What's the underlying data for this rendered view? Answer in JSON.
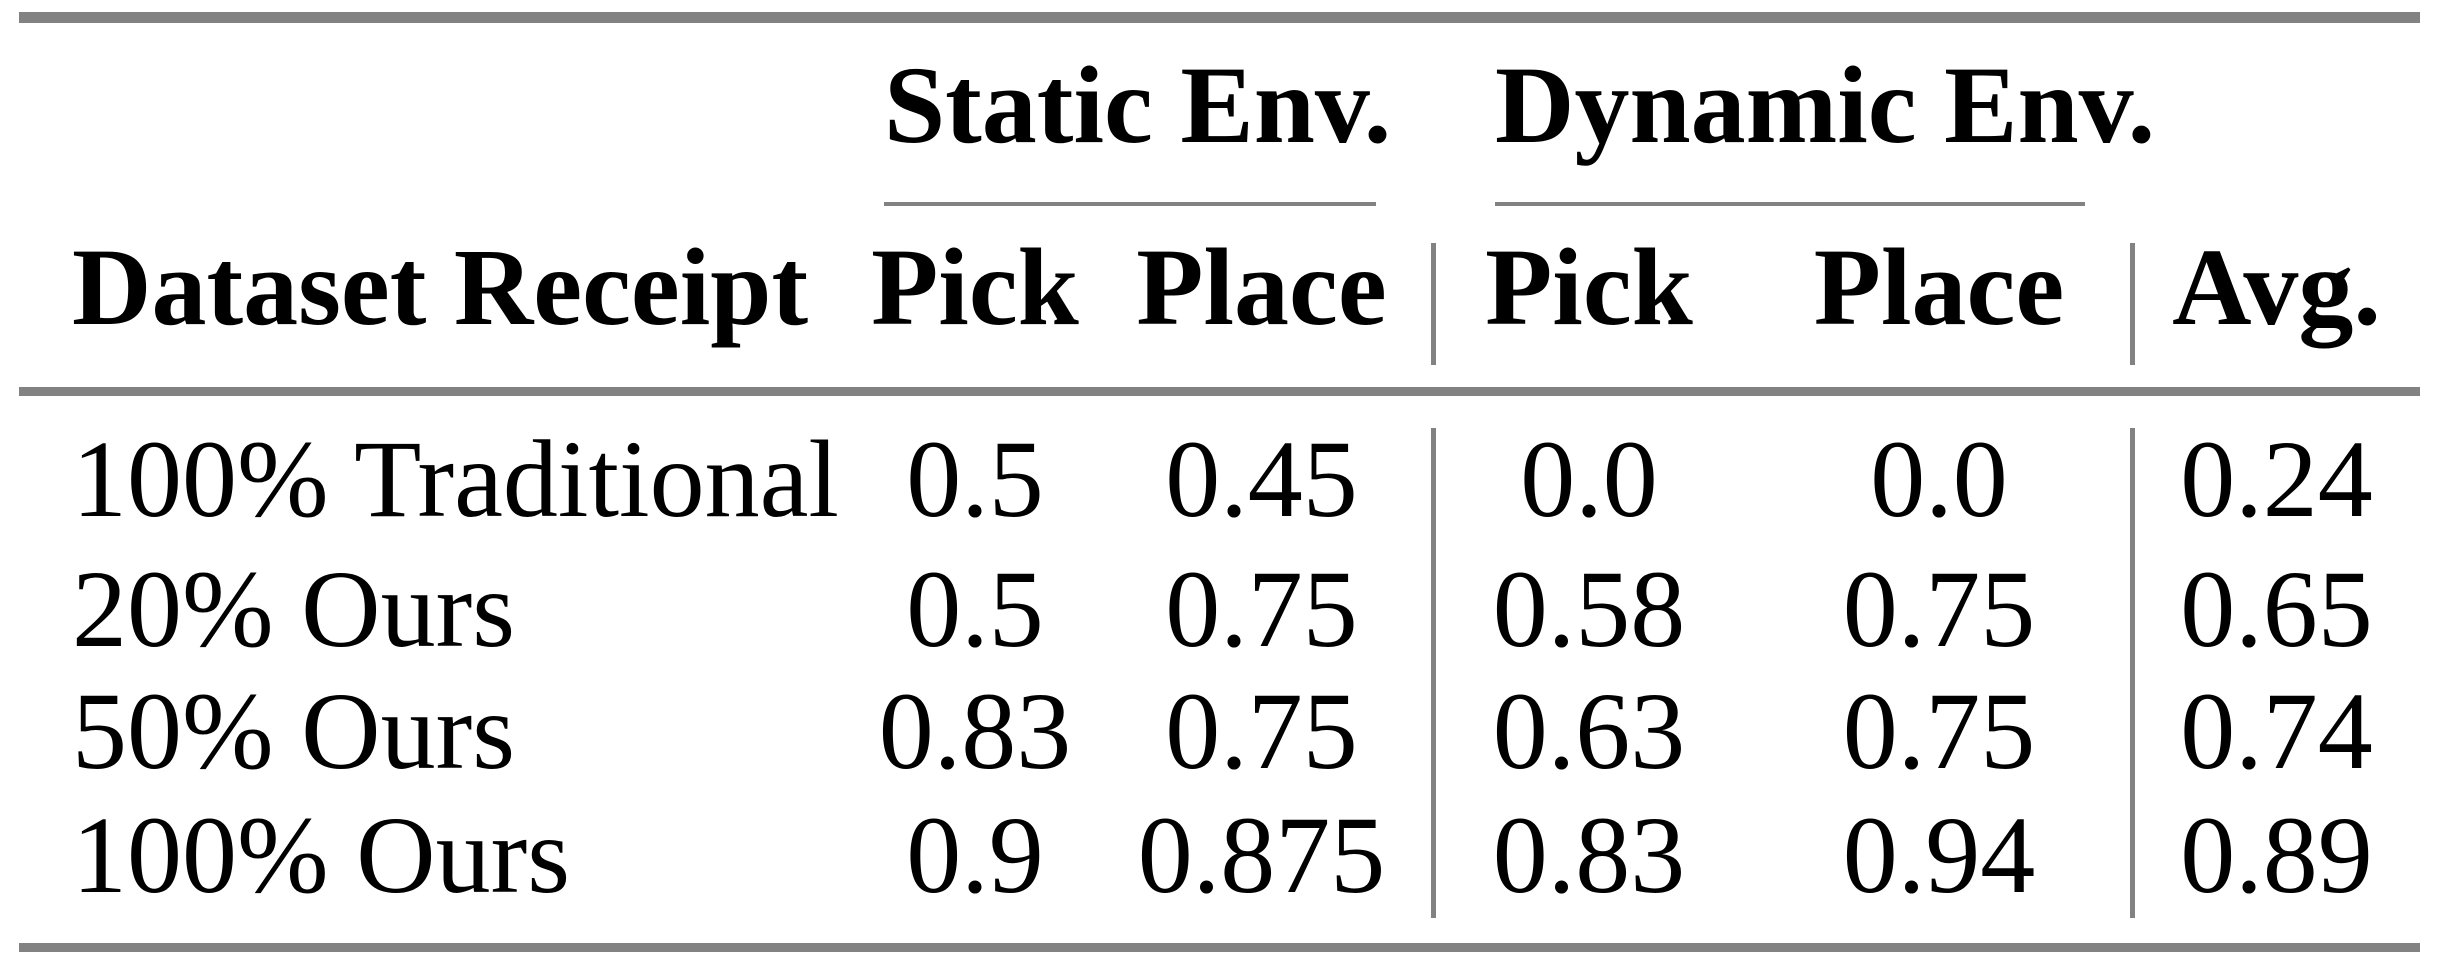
{
  "table": {
    "group_headers": [
      {
        "label": "Static Env."
      },
      {
        "label": "Dynamic Env."
      }
    ],
    "column_headers": [
      "Dataset Receipt",
      "Pick",
      "Place",
      "Pick",
      "Place",
      "Avg."
    ],
    "rows": [
      {
        "cells": [
          "100% Traditional",
          "0.5",
          "0.45",
          "0.0",
          "0.0",
          "0.24"
        ]
      },
      {
        "cells": [
          "20% Ours",
          "0.5",
          "0.75",
          "0.58",
          "0.75",
          "0.65"
        ]
      },
      {
        "cells": [
          "50% Ours",
          "0.83",
          "0.75",
          "0.63",
          "0.75",
          "0.74"
        ]
      },
      {
        "cells": [
          "100% Ours",
          "0.9",
          "0.875",
          "0.83",
          "0.94",
          "0.89"
        ]
      }
    ],
    "colors": {
      "rule_gray": "#828282",
      "text": "#000000",
      "background": "#ffffff"
    }
  }
}
